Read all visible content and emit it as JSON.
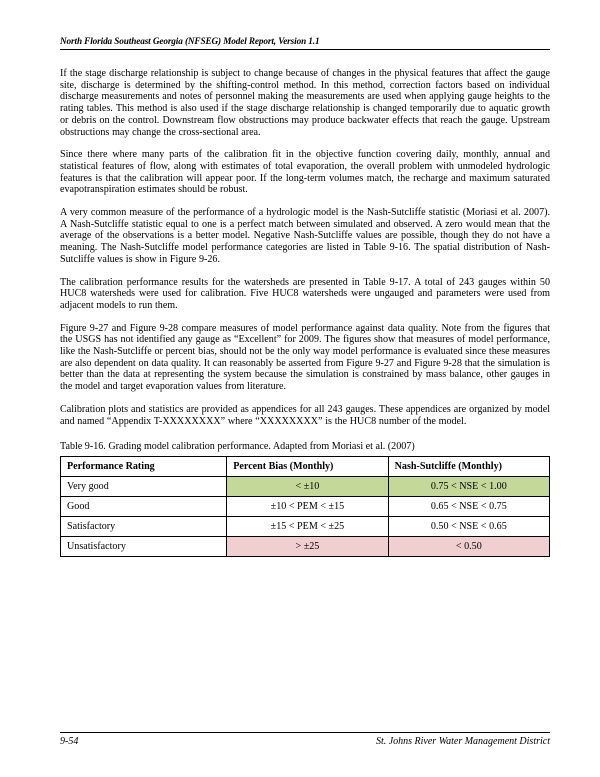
{
  "header": {
    "title": "North Florida Southeast Georgia (NFSEG) Model Report, Version 1.1"
  },
  "paragraphs": {
    "p1": "If the stage discharge relationship is subject to change because of changes in the physical features that affect the gauge site, discharge is determined by the shifting-control method. In this method, correction factors based on individual discharge measurements and notes of personnel making the measurements are used when applying gauge heights to the rating tables.  This method is also used if the stage discharge relationship is changed temporarily due to aquatic growth or debris on the control.  Downstream flow obstructions may produce backwater effects that reach the gauge.  Upstream obstructions may change the cross-sectional area.",
    "p2": "Since there  where many parts of the calibration fit in the objective function covering daily, monthly, annual and statistical features of flow, along with estimates of total evaporation, the overall problem with unmodeled hydrologic features is that the calibration will appear poor.  If the long-term volumes match, the recharge and maximum saturated evapotranspiration estimates should be robust.",
    "p3": "A very common measure of the performance of a hydrologic model is the Nash-Sutcliffe statistic (Moriasi et al. 2007).  A Nash-Sutcliffe statistic equal to one is a perfect match between simulated and observed. A zero would mean that the average of the observations is a better model.  Negative Nash-Sutcliffe values are possible, though they do not have a meaning.  The Nash-Sutcliffe model performance categories are listed in Table 9-16.  The spatial distribution of Nash-Sutcliffe values is show in Figure 9-26.",
    "p4": "The calibration performance results for the watersheds are presented in Table 9-17.  A total of 243 gauges within 50 HUC8 watersheds were used for calibration.  Five HUC8 watersheds were ungauged and parameters were used from adjacent models to run them.",
    "p5": "Figure 9-27 and Figure 9-28 compare measures of model performance against data quality.  Note from the figures that the USGS has not identified any gauge as “Excellent” for 2009.  The figures show that measures of model performance, like the Nash-Sutcliffe or percent bias, should not be the only way model performance is evaluated since these measures are also dependent on data quality.  It can reasonably be asserted from Figure 9-27 and Figure 9-28 that the simulation is better than the data at representing the system because the simulation is constrained by mass balance, other gauges in the model and target evaporation values from literature.",
    "p6": "Calibration plots and statistics are provided as appendices for all 243 gauges.  These appendices are organized by model and named “Appendix T-XXXXXXXX” where “XXXXXXXX” is the HUC8 number of the model."
  },
  "table": {
    "caption": "Table 9-16.  Grading model calibration performance.  Adapted from Moriasi et al. (2007)",
    "columns": [
      "Performance Rating",
      "Percent Bias (Monthly)",
      "Nash-Sutcliffe (Monthly)"
    ],
    "col_widths": [
      "34%",
      "33%",
      "33%"
    ],
    "header_bg": "#ffffff",
    "rows": [
      {
        "cells": [
          "Very good",
          "< ±10",
          "0.75 < NSE < 1.00"
        ],
        "bg": [
          "#ffffff",
          "#c4d89a",
          "#c4d89a"
        ]
      },
      {
        "cells": [
          "Good",
          "±10 < PEM < ±15",
          "0.65 < NSE < 0.75"
        ],
        "bg": [
          "#ffffff",
          "#ffffff",
          "#ffffff"
        ]
      },
      {
        "cells": [
          "Satisfactory",
          "±15 < PEM < ±25",
          "0.50 < NSE < 0.65"
        ],
        "bg": [
          "#ffffff",
          "#ffffff",
          "#ffffff"
        ]
      },
      {
        "cells": [
          "Unsatisfactory",
          "> ±25",
          "< 0.50"
        ],
        "bg": [
          "#ffffff",
          "#f0cfd0",
          "#f0cfd0"
        ]
      }
    ]
  },
  "footer": {
    "left": "9-54",
    "right": "St. Johns River Water Management District"
  },
  "colors": {
    "good_bg": "#c4d89a",
    "bad_bg": "#f0cfd0",
    "border": "#000000",
    "text": "#000000",
    "page_bg": "#ffffff"
  },
  "typography": {
    "body_font": "Times New Roman",
    "body_size_pt": 10.1,
    "header_size_pt": 9.2,
    "footer_size_pt": 10
  }
}
